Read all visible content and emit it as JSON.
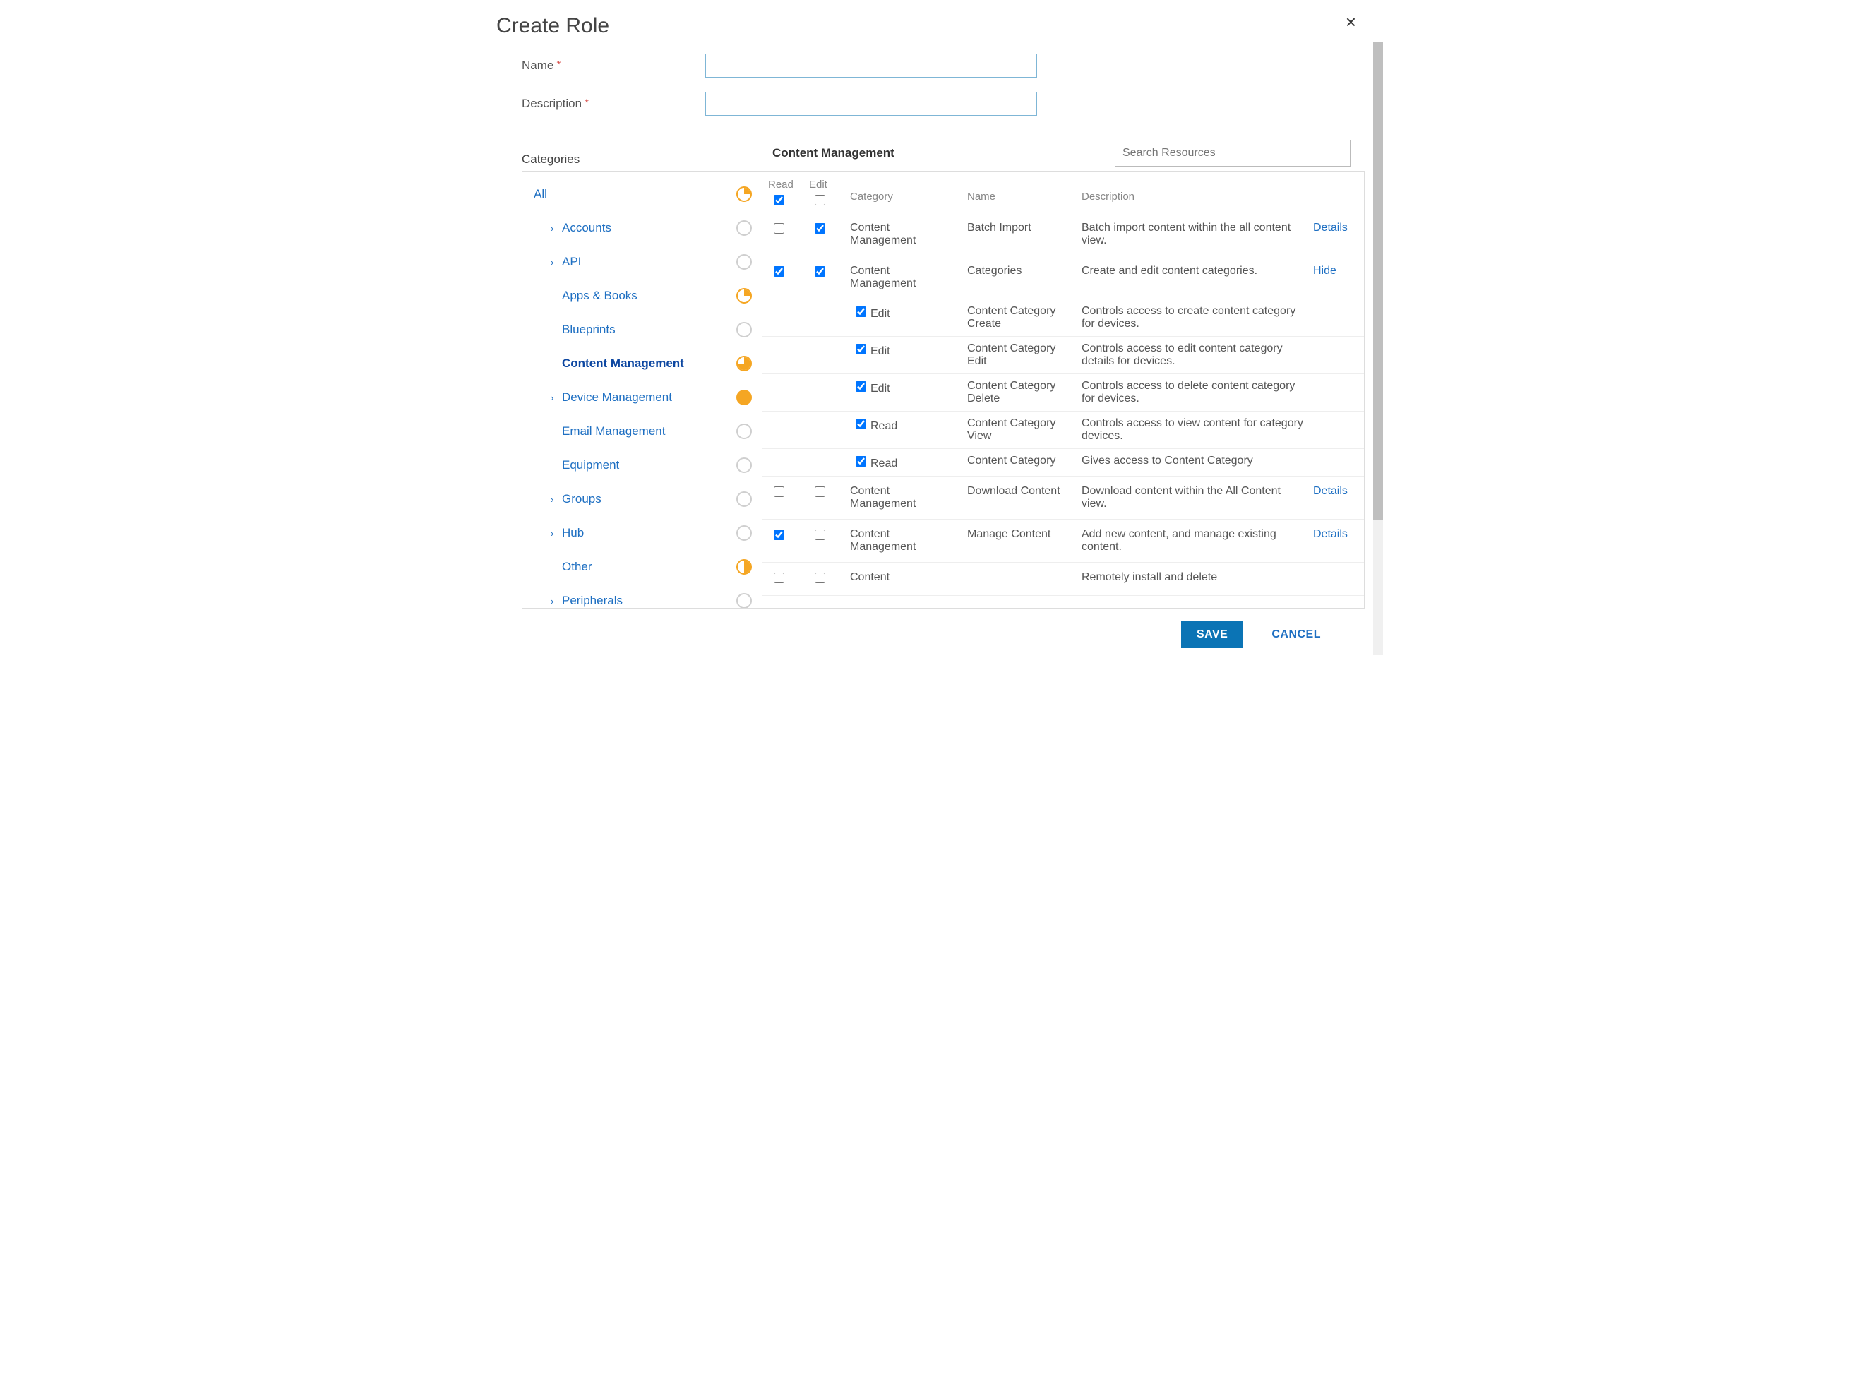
{
  "dialog": {
    "title": "Create Role",
    "close_icon": "×"
  },
  "form": {
    "name_label": "Name",
    "name_value": "",
    "description_label": "Description",
    "description_value": ""
  },
  "sidebar": {
    "header": "Categories",
    "items": [
      {
        "label": "All",
        "level": 0,
        "expandable": false,
        "status": "quarter"
      },
      {
        "label": "Accounts",
        "level": 1,
        "expandable": true,
        "status": "none"
      },
      {
        "label": "API",
        "level": 1,
        "expandable": true,
        "status": "none"
      },
      {
        "label": "Apps & Books",
        "level": 1,
        "expandable": false,
        "status": "quarter"
      },
      {
        "label": "Blueprints",
        "level": 1,
        "expandable": false,
        "status": "none"
      },
      {
        "label": "Content Management",
        "level": 1,
        "expandable": false,
        "status": "threeq",
        "selected": true
      },
      {
        "label": "Device Management",
        "level": 1,
        "expandable": true,
        "status": "full"
      },
      {
        "label": "Email Management",
        "level": 1,
        "expandable": false,
        "status": "none"
      },
      {
        "label": "Equipment",
        "level": 1,
        "expandable": false,
        "status": "none"
      },
      {
        "label": "Groups",
        "level": 1,
        "expandable": true,
        "status": "none"
      },
      {
        "label": "Hub",
        "level": 1,
        "expandable": true,
        "status": "none"
      },
      {
        "label": "Other",
        "level": 1,
        "expandable": false,
        "status": "half"
      },
      {
        "label": "Peripherals",
        "level": 1,
        "expandable": true,
        "status": "none"
      }
    ]
  },
  "panel": {
    "title": "Content Management",
    "search_placeholder": "Search Resources",
    "columns": {
      "read": "Read",
      "edit": "Edit",
      "category": "Category",
      "name": "Name",
      "description": "Description"
    },
    "header_read_checked": true,
    "header_edit_checked": false,
    "rows": [
      {
        "type": "row",
        "read": false,
        "edit": true,
        "category": "Content Management",
        "name": "Batch Import",
        "description": "Batch import content within the all content view.",
        "action": "Details"
      },
      {
        "type": "row",
        "read": true,
        "edit": true,
        "category": "Content Management",
        "name": "Categories",
        "description": "Create and edit content categories.",
        "action": "Hide"
      },
      {
        "type": "sub",
        "checked": true,
        "label": "Edit",
        "name": "Content Category Create",
        "description": "Controls access to create content category for devices."
      },
      {
        "type": "sub",
        "checked": true,
        "label": "Edit",
        "name": "Content Category Edit",
        "description": "Controls access to edit content category details for devices."
      },
      {
        "type": "sub",
        "checked": true,
        "label": "Edit",
        "name": "Content Category Delete",
        "description": "Controls access to delete content category for devices."
      },
      {
        "type": "sub",
        "checked": true,
        "label": "Read",
        "name": "Content Category View",
        "description": "Controls access to view content for category devices."
      },
      {
        "type": "sub",
        "checked": true,
        "label": "Read",
        "name": "Content Category",
        "description": "Gives access to Content Category"
      },
      {
        "type": "row",
        "read": false,
        "edit": false,
        "category": "Content Management",
        "name": "Download Content",
        "description": "Download content within the All Content view.",
        "action": "Details"
      },
      {
        "type": "row",
        "read": true,
        "edit": false,
        "category": "Content Management",
        "name": "Manage Content",
        "description": "Add new content, and manage existing content.",
        "action": "Details"
      },
      {
        "type": "row",
        "read": false,
        "edit": false,
        "category": "Content",
        "name": "",
        "description": "Remotely install and delete",
        "action": ""
      }
    ]
  },
  "footer": {
    "save": "SAVE",
    "cancel": "CANCEL"
  },
  "colors": {
    "link": "#1e6fc2",
    "accent": "#f5a623",
    "primary_button": "#0b74b5",
    "border_input": "#7fb6d6",
    "text": "#555555",
    "text_muted": "#888888",
    "divider": "#e5e5e5",
    "required": "#d9534f"
  }
}
